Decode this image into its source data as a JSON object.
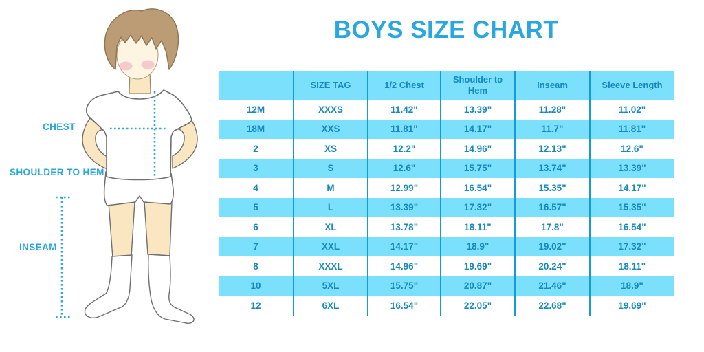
{
  "chart_data": {
    "type": "table",
    "title": "BOYS SIZE CHART",
    "columns": [
      "",
      "SIZE TAG",
      "1/2 Chest",
      "Shoulder to Hem",
      "Inseam",
      "Sleeve Length"
    ],
    "rows": [
      [
        "12M",
        "XXXS",
        "11.42\"",
        "13.39\"",
        "11.28\"",
        "11.02\""
      ],
      [
        "18M",
        "XXS",
        "11.81\"",
        "14.17\"",
        "11.7\"",
        "11.81\""
      ],
      [
        "2",
        "XS",
        "12.2\"",
        "14.96\"",
        "12.13\"",
        "12.6\""
      ],
      [
        "3",
        "S",
        "12.6\"",
        "15.75\"",
        "13.74\"",
        "13.39\""
      ],
      [
        "4",
        "M",
        "12.99\"",
        "16.54\"",
        "15.35\"",
        "14.17\""
      ],
      [
        "5",
        "L",
        "13.39\"",
        "17.32\"",
        "16.57\"",
        "15.35\""
      ],
      [
        "6",
        "XL",
        "13.78\"",
        "18.11\"",
        "17.8\"",
        "16.54\""
      ],
      [
        "7",
        "XXL",
        "14.17\"",
        "18.9\"",
        "19.02\"",
        "17.32\""
      ],
      [
        "8",
        "XXXL",
        "14.96\"",
        "19.69\"",
        "20.24\"",
        "18.11\""
      ],
      [
        "10",
        "5XL",
        "15.75\"",
        "20.87\"",
        "21.46\"",
        "18.9\""
      ],
      [
        "12",
        "6XL",
        "16.54\"",
        "22.05\"",
        "22.68\"",
        "19.69\""
      ]
    ],
    "layout": {
      "header_band": true,
      "zebra_rows": true,
      "row_label_column": true
    }
  },
  "figure": {
    "labels": {
      "chest": "CHEST",
      "shoulder_to_hem": "SHOULDER TO HEM",
      "inseam": "INSEAM"
    }
  },
  "colors": {
    "accent_blue": "#29A7DE",
    "table_band": "#7AE0FB",
    "table_divider": "#179BD7",
    "table_text": "#1888BD",
    "skin": "#FAE7C2",
    "hair": "#BB9C74",
    "blush": "#F2AEC0",
    "outline_gray": "#6F6F6F"
  }
}
